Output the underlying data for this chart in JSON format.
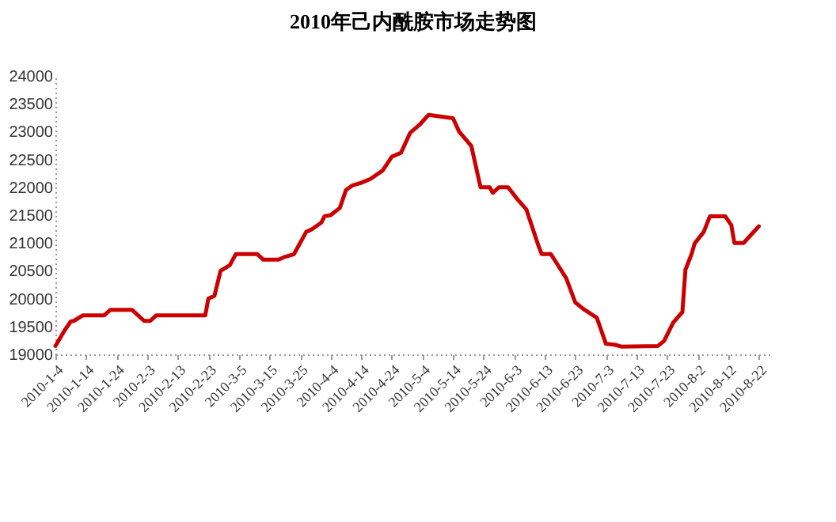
{
  "chart_data": {
    "type": "line",
    "title": "2010年己内酰胺市场走势图",
    "x": [
      "2010-01-04",
      "2010-01-07",
      "2010-01-09",
      "2010-01-10",
      "2010-01-13",
      "2010-01-20",
      "2010-01-22",
      "2010-01-29",
      "2010-01-31",
      "2010-02-02",
      "2010-02-04",
      "2010-02-06",
      "2010-02-22",
      "2010-02-23",
      "2010-02-25",
      "2010-02-27",
      "2010-03-02",
      "2010-03-04",
      "2010-03-11",
      "2010-03-13",
      "2010-03-18",
      "2010-03-20",
      "2010-03-23",
      "2010-03-25",
      "2010-03-27",
      "2010-03-29",
      "2010-04-01",
      "2010-04-02",
      "2010-04-04",
      "2010-04-07",
      "2010-04-09",
      "2010-04-11",
      "2010-04-14",
      "2010-04-17",
      "2010-04-21",
      "2010-04-24",
      "2010-04-27",
      "2010-04-30",
      "2010-05-03",
      "2010-05-06",
      "2010-05-14",
      "2010-05-16",
      "2010-05-20",
      "2010-05-23",
      "2010-05-26",
      "2010-05-27",
      "2010-05-29",
      "2010-06-01",
      "2010-06-04",
      "2010-06-07",
      "2010-06-11",
      "2010-06-12",
      "2010-06-15",
      "2010-06-20",
      "2010-06-23",
      "2010-06-26",
      "2010-06-30",
      "2010-07-03",
      "2010-07-06",
      "2010-07-08",
      "2010-07-20",
      "2010-07-22",
      "2010-07-25",
      "2010-07-28",
      "2010-07-29",
      "2010-07-31",
      "2010-08-01",
      "2010-08-04",
      "2010-08-06",
      "2010-08-11",
      "2010-08-13",
      "2010-08-14",
      "2010-08-17",
      "2010-08-20",
      "2010-08-22"
    ],
    "series": [
      {
        "color": "#cc0000",
        "values": [
          19150,
          19430,
          19590,
          19600,
          19700,
          19700,
          19800,
          19800,
          19700,
          19600,
          19600,
          19700,
          19700,
          20000,
          20050,
          20500,
          20600,
          20800,
          20800,
          20700,
          20700,
          20750,
          20800,
          21000,
          21200,
          21250,
          21370,
          21480,
          21500,
          21630,
          21950,
          22030,
          22080,
          22150,
          22300,
          22550,
          22620,
          22980,
          23120,
          23300,
          23240,
          23000,
          22740,
          22000,
          22000,
          21900,
          22000,
          22000,
          21790,
          21600,
          20940,
          20800,
          20800,
          20370,
          19930,
          19800,
          19660,
          19190,
          19170,
          19140,
          19150,
          19240,
          19570,
          19760,
          20520,
          20800,
          20990,
          21200,
          21480,
          21480,
          21320,
          21000,
          21000,
          21180,
          21300
        ]
      }
    ],
    "xlim": [
      "2010-01-04",
      "2010-08-26"
    ],
    "xticks": [
      {
        "value": "2010-01-04",
        "label": "2010-1-4"
      },
      {
        "value": "2010-01-14",
        "label": "2010-1-14"
      },
      {
        "value": "2010-01-24",
        "label": "2010-1-24"
      },
      {
        "value": "2010-02-03",
        "label": "2010-2-3"
      },
      {
        "value": "2010-02-13",
        "label": "2010-2-13"
      },
      {
        "value": "2010-02-23",
        "label": "2010-2-23"
      },
      {
        "value": "2010-03-05",
        "label": "2010-3-5"
      },
      {
        "value": "2010-03-15",
        "label": "2010-3-15"
      },
      {
        "value": "2010-03-25",
        "label": "2010-3-25"
      },
      {
        "value": "2010-04-04",
        "label": "2010-4-4"
      },
      {
        "value": "2010-04-14",
        "label": "2010-4-14"
      },
      {
        "value": "2010-04-24",
        "label": "2010-4-24"
      },
      {
        "value": "2010-05-04",
        "label": "2010-5-4"
      },
      {
        "value": "2010-05-14",
        "label": "2010-5-14"
      },
      {
        "value": "2010-05-24",
        "label": "2010-5-24"
      },
      {
        "value": "2010-06-03",
        "label": "2010-6-3"
      },
      {
        "value": "2010-06-13",
        "label": "2010-6-13"
      },
      {
        "value": "2010-06-23",
        "label": "2010-6-23"
      },
      {
        "value": "2010-07-03",
        "label": "2010-7-3"
      },
      {
        "value": "2010-07-13",
        "label": "2010-7-13"
      },
      {
        "value": "2010-07-23",
        "label": "2010-7-23"
      },
      {
        "value": "2010-08-02",
        "label": "2010-8-2"
      },
      {
        "value": "2010-08-12",
        "label": "2010-8-12"
      },
      {
        "value": "2010-08-22",
        "label": "2010-8-22"
      }
    ],
    "ylim": [
      19000,
      24000
    ],
    "yticks": [
      19000,
      19500,
      20000,
      20500,
      21000,
      21500,
      22000,
      22500,
      23000,
      23500,
      24000
    ],
    "grid": false,
    "marker": "none",
    "line_style": "solid"
  }
}
